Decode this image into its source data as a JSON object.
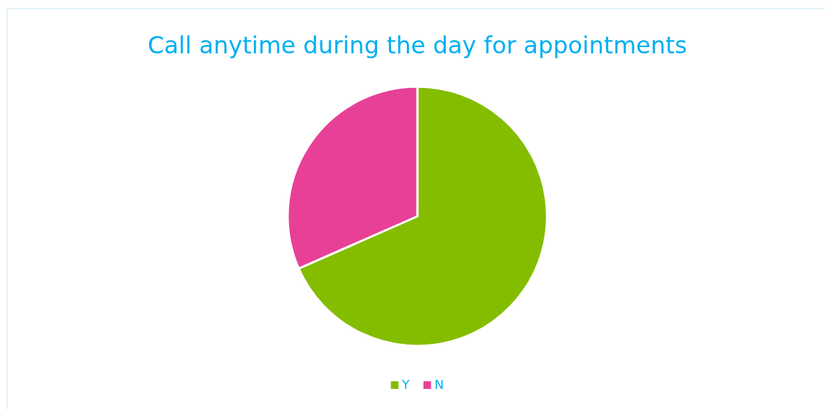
{
  "chart_data": {
    "type": "pie",
    "title": "Call anytime during the day for appointments",
    "categories": [
      "Y",
      "N"
    ],
    "values": [
      68.4,
      31.6
    ],
    "colors": [
      "#84bd00",
      "#e84097"
    ],
    "legend": "bottom"
  }
}
